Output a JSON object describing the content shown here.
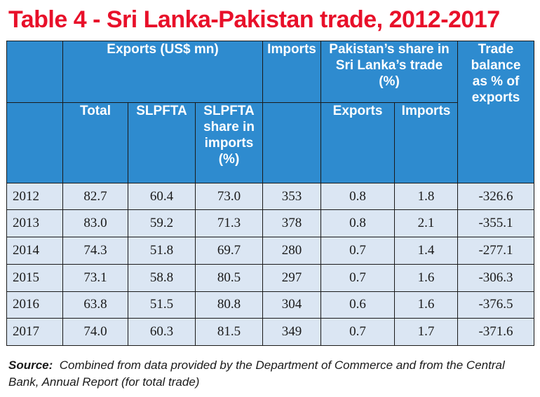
{
  "title": "Table 4 - Sri Lanka-Pakistan trade, 2012-2017",
  "headers": {
    "exports_group": "Exports  (US$ mn)",
    "imports": "Imports",
    "pakistan_share_line1": "Pakistan’s share in",
    "pakistan_share_line2": "Sri Lanka’s  trade",
    "pakistan_share_line3": "(%)",
    "trade_balance_line1": "Trade",
    "trade_balance_line2": "balance",
    "trade_balance_line3": "as % of",
    "trade_balance_line4": "exports",
    "total": "Total",
    "slpfta": "SLPFTA",
    "slpfta_share_line1": "SLPFTA",
    "slpfta_share_line2": "share in",
    "slpfta_share_line3": "imports",
    "slpfta_share_line4": "(%)",
    "share_exports": "Exports",
    "share_imports": "Imports"
  },
  "rows": [
    [
      "2012",
      "82.7",
      "60.4",
      "73.0",
      "353",
      "0.8",
      "1.8",
      "-326.6"
    ],
    [
      "2013",
      "83.0",
      "59.2",
      "71.3",
      "378",
      "0.8",
      "2.1",
      "-355.1"
    ],
    [
      "2014",
      "74.3",
      "51.8",
      "69.7",
      "280",
      "0.7",
      "1.4",
      "-277.1"
    ],
    [
      "2015",
      "73.1",
      "58.8",
      "80.5",
      "297",
      "0.7",
      "1.6",
      "-306.3"
    ],
    [
      "2016",
      "63.8",
      "51.5",
      "80.8",
      "304",
      "0.6",
      "1.6",
      "-376.5"
    ],
    [
      "2017",
      "74.0",
      "60.3",
      "81.5",
      "349",
      "0.7",
      "1.7",
      "-371.6"
    ]
  ],
  "source": {
    "label": "Source:",
    "text": "Combined from data provided by the Department of Commerce and from the Central Bank, Annual Report (for total trade)"
  },
  "colors": {
    "title": "#e8102a",
    "header_bg": "#2e8bcf",
    "row_bg": "#dbe6f3"
  }
}
